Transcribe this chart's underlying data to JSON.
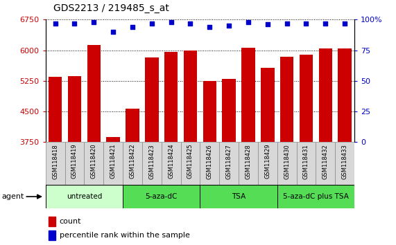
{
  "title": "GDS2213 / 219485_s_at",
  "samples": [
    "GSM118418",
    "GSM118419",
    "GSM118420",
    "GSM118421",
    "GSM118422",
    "GSM118423",
    "GSM118424",
    "GSM118425",
    "GSM118426",
    "GSM118427",
    "GSM118428",
    "GSM118429",
    "GSM118430",
    "GSM118431",
    "GSM118432",
    "GSM118433"
  ],
  "counts": [
    5350,
    5370,
    6130,
    3870,
    4570,
    5830,
    5960,
    6000,
    5250,
    5290,
    6060,
    5570,
    5840,
    5890,
    6040,
    6040
  ],
  "percentiles": [
    97,
    97,
    98,
    90,
    94,
    97,
    98,
    97,
    94,
    95,
    98,
    96,
    97,
    97,
    97,
    97
  ],
  "bar_color": "#cc0000",
  "dot_color": "#0000cc",
  "ylim_left": [
    3750,
    6750
  ],
  "ylim_right": [
    0,
    100
  ],
  "yticks_left": [
    3750,
    4500,
    5250,
    6000,
    6750
  ],
  "yticks_right": [
    0,
    25,
    50,
    75,
    100
  ],
  "bg_color": "#ffffff",
  "groups": [
    {
      "label": "untreated",
      "start": 0,
      "end": 3,
      "color": "#ccffcc"
    },
    {
      "label": "5-aza-dC",
      "start": 4,
      "end": 7,
      "color": "#55dd55"
    },
    {
      "label": "TSA",
      "start": 8,
      "end": 11,
      "color": "#55dd55"
    },
    {
      "label": "5-aza-dC plus TSA",
      "start": 12,
      "end": 15,
      "color": "#55dd55"
    }
  ],
  "agent_label": "agent",
  "legend_count_label": "count",
  "legend_pct_label": "percentile rank within the sample",
  "title_fontsize": 10,
  "axis_color_left": "#cc0000",
  "axis_color_right": "#0000cc",
  "tick_label_bg": "#d8d8d8",
  "tick_label_border": "#888888"
}
